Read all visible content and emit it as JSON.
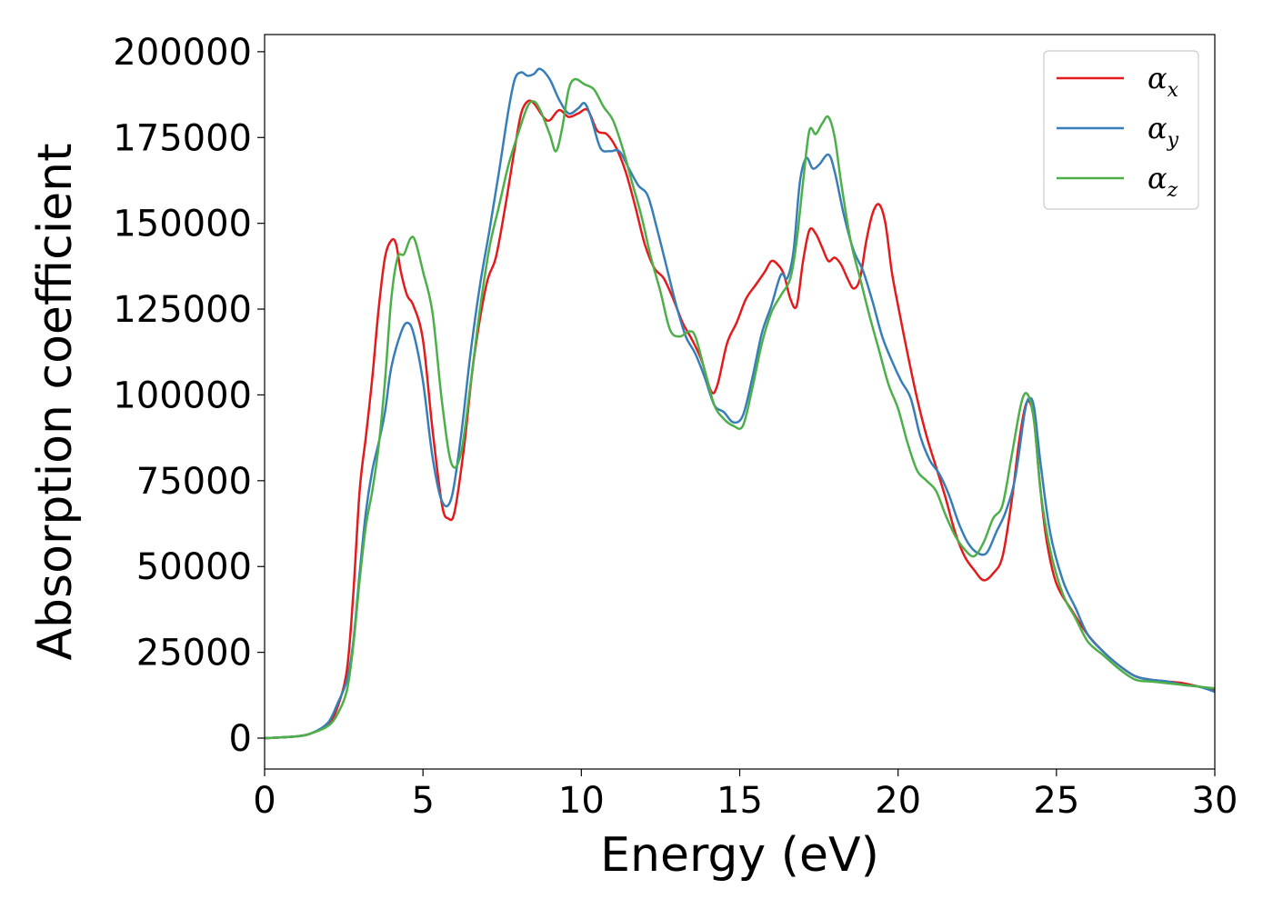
{
  "chart_data": {
    "type": "line",
    "title": "",
    "xlabel": "Energy (eV)",
    "ylabel": "Absorption coefficient",
    "xlim": [
      0,
      30
    ],
    "ylim": [
      -9000,
      205000
    ],
    "xticks": [
      0,
      5,
      10,
      15,
      20,
      25,
      30
    ],
    "yticks": [
      0,
      25000,
      50000,
      75000,
      100000,
      125000,
      150000,
      175000,
      200000
    ],
    "grid": false,
    "legend_position": "top-right",
    "series": [
      {
        "name": "α_x",
        "symbol": "α",
        "subscript": "x",
        "color": "#e41a1c",
        "x": [
          0,
          1,
          1.5,
          2,
          2.3,
          2.6,
          2.8,
          3.0,
          3.2,
          3.4,
          3.6,
          3.8,
          4.0,
          4.15,
          4.3,
          4.5,
          4.7,
          5.0,
          5.3,
          5.6,
          5.8,
          6.0,
          6.3,
          6.6,
          7.0,
          7.3,
          7.6,
          7.9,
          8.1,
          8.3,
          8.5,
          8.8,
          9.0,
          9.3,
          9.6,
          9.9,
          10.2,
          10.5,
          10.8,
          11.1,
          11.4,
          11.7,
          12.0,
          12.3,
          12.6,
          12.9,
          13.2,
          13.5,
          13.8,
          14.1,
          14.3,
          14.6,
          14.9,
          15.2,
          15.5,
          15.8,
          16.0,
          16.2,
          16.4,
          16.6,
          16.8,
          17.0,
          17.2,
          17.4,
          17.6,
          17.8,
          18.0,
          18.2,
          18.4,
          18.6,
          18.8,
          19.0,
          19.2,
          19.4,
          19.6,
          19.8,
          20.0,
          20.3,
          20.6,
          20.9,
          21.2,
          21.5,
          21.8,
          22.1,
          22.4,
          22.7,
          23.0,
          23.3,
          23.6,
          23.8,
          24.0,
          24.15,
          24.3,
          24.5,
          24.7,
          25.0,
          25.5,
          26.0,
          26.5,
          27.0,
          27.5,
          28.0,
          28.5,
          29.0,
          29.5,
          30.0
        ],
        "y": [
          0,
          500,
          1500,
          4000,
          9000,
          20000,
          42000,
          72000,
          88000,
          105000,
          125000,
          140000,
          145000,
          144000,
          136000,
          129000,
          126000,
          116000,
          90000,
          68000,
          64000,
          66000,
          85000,
          110000,
          132000,
          140000,
          155000,
          172000,
          182000,
          185500,
          185000,
          181000,
          180000,
          183000,
          181000,
          182000,
          183000,
          177000,
          176000,
          172000,
          165000,
          155000,
          144000,
          137000,
          134000,
          128000,
          121000,
          116000,
          110000,
          101000,
          103000,
          115000,
          121000,
          128000,
          132000,
          136000,
          139000,
          138000,
          135000,
          128000,
          126000,
          139000,
          148000,
          147000,
          143000,
          139000,
          140000,
          138000,
          134000,
          131000,
          134000,
          145000,
          153000,
          155500,
          150000,
          136000,
          126000,
          112000,
          99000,
          88000,
          79000,
          70000,
          60000,
          53000,
          49000,
          46000,
          48000,
          53000,
          70000,
          85000,
          96000,
          98000,
          92000,
          72000,
          57000,
          45000,
          37000,
          30000,
          25000,
          21000,
          18000,
          17000,
          16500,
          16000,
          15000,
          14000
        ]
      },
      {
        "name": "α_y",
        "symbol": "α",
        "subscript": "y",
        "color": "#377eb8",
        "x": [
          0,
          1,
          1.5,
          2,
          2.3,
          2.6,
          2.8,
          3.0,
          3.2,
          3.4,
          3.6,
          3.8,
          4.0,
          4.3,
          4.5,
          4.7,
          5.0,
          5.3,
          5.6,
          5.9,
          6.2,
          6.5,
          6.8,
          7.1,
          7.4,
          7.7,
          7.9,
          8.1,
          8.3,
          8.5,
          8.7,
          9.0,
          9.3,
          9.6,
          9.9,
          10.1,
          10.3,
          10.6,
          10.9,
          11.2,
          11.5,
          11.8,
          12.1,
          12.4,
          12.7,
          13.0,
          13.3,
          13.6,
          13.9,
          14.2,
          14.5,
          14.8,
          15.1,
          15.4,
          15.7,
          16.0,
          16.3,
          16.5,
          16.7,
          16.9,
          17.1,
          17.3,
          17.5,
          17.8,
          18.0,
          18.3,
          18.6,
          18.9,
          19.2,
          19.5,
          19.8,
          20.1,
          20.4,
          20.7,
          21.0,
          21.3,
          21.6,
          21.9,
          22.2,
          22.5,
          22.8,
          23.1,
          23.4,
          23.7,
          24.0,
          24.15,
          24.3,
          24.5,
          24.8,
          25.2,
          25.6,
          26.0,
          26.5,
          27.0,
          27.5,
          28.0,
          28.5,
          29.0,
          29.5,
          30.0
        ],
        "y": [
          0,
          500,
          1500,
          4500,
          10000,
          17000,
          28000,
          48000,
          66000,
          78000,
          86000,
          95000,
          108000,
          118000,
          121000,
          118000,
          104000,
          82000,
          69000,
          70000,
          88000,
          112000,
          132000,
          148000,
          165000,
          183000,
          192000,
          194000,
          193000,
          193500,
          195000,
          192000,
          186000,
          182000,
          183500,
          185000,
          181000,
          172000,
          171000,
          171000,
          166000,
          161000,
          158000,
          148000,
          137000,
          126000,
          117000,
          112000,
          105000,
          97000,
          95000,
          92000,
          94000,
          105000,
          118000,
          126000,
          135000,
          134000,
          142000,
          162000,
          169000,
          166000,
          167000,
          170000,
          165000,
          152000,
          142000,
          136000,
          127000,
          117000,
          110000,
          104000,
          99000,
          88000,
          81000,
          77000,
          71000,
          63000,
          57000,
          54000,
          54000,
          60000,
          66000,
          76000,
          95000,
          99000,
          96000,
          80000,
          60000,
          46000,
          38000,
          30000,
          25000,
          21000,
          18000,
          17000,
          16500,
          15500,
          15000,
          13500
        ]
      },
      {
        "name": "α_z",
        "symbol": "α",
        "subscript": "z",
        "color": "#4daf4a",
        "x": [
          0,
          1,
          1.5,
          2,
          2.3,
          2.6,
          2.8,
          3.0,
          3.2,
          3.4,
          3.6,
          3.8,
          4.0,
          4.2,
          4.4,
          4.6,
          4.75,
          5.0,
          5.3,
          5.6,
          5.9,
          6.2,
          6.5,
          6.8,
          7.1,
          7.4,
          7.7,
          8.0,
          8.3,
          8.5,
          8.7,
          9.0,
          9.2,
          9.4,
          9.6,
          9.8,
          10.1,
          10.4,
          10.7,
          11.0,
          11.3,
          11.6,
          11.9,
          12.2,
          12.5,
          12.8,
          13.1,
          13.4,
          13.6,
          13.9,
          14.2,
          14.5,
          14.8,
          15.1,
          15.4,
          15.7,
          16.0,
          16.3,
          16.6,
          16.8,
          17.0,
          17.2,
          17.4,
          17.6,
          17.8,
          18.0,
          18.2,
          18.5,
          18.8,
          19.1,
          19.4,
          19.7,
          20.0,
          20.3,
          20.6,
          20.9,
          21.2,
          21.5,
          21.8,
          22.1,
          22.4,
          22.7,
          23.0,
          23.3,
          23.6,
          23.9,
          24.1,
          24.3,
          24.5,
          24.8,
          25.2,
          25.6,
          26.0,
          26.5,
          27.0,
          27.5,
          28.0,
          28.5,
          29.0,
          29.5,
          30.0
        ],
        "y": [
          0,
          500,
          1500,
          3500,
          7000,
          14000,
          27000,
          46000,
          62000,
          72000,
          85000,
          104000,
          128000,
          140000,
          141000,
          145500,
          145000,
          136000,
          124000,
          98000,
          80000,
          83000,
          103000,
          125000,
          143000,
          155000,
          167000,
          176000,
          184000,
          185500,
          183000,
          176000,
          171000,
          178000,
          189000,
          192000,
          190500,
          189000,
          184000,
          180000,
          172000,
          162000,
          152000,
          140000,
          130000,
          119000,
          117000,
          118500,
          117000,
          107000,
          97000,
          93000,
          91000,
          91000,
          102000,
          115000,
          124000,
          129000,
          134000,
          145000,
          162000,
          177000,
          176000,
          179000,
          181000,
          175000,
          162000,
          145000,
          134000,
          123000,
          113000,
          103000,
          96000,
          86000,
          78000,
          75000,
          72000,
          65000,
          59000,
          55000,
          53000,
          57000,
          64000,
          68000,
          83000,
          98000,
          100000,
          92000,
          72000,
          55000,
          42000,
          35000,
          28000,
          24000,
          20000,
          17000,
          16500,
          16000,
          15500,
          15000,
          14500
        ]
      }
    ]
  }
}
